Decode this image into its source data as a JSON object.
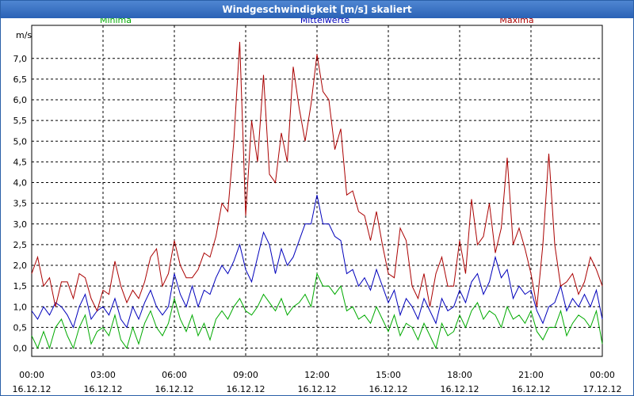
{
  "window": {
    "title": "Windgeschwindigkeit [m/s] skaliert"
  },
  "chart_data": {
    "type": "line",
    "title": "Windgeschwindigkeit [m/s] skaliert",
    "ylabel": "m/s",
    "xlabel": "",
    "ylim": [
      -0.2,
      7.8
    ],
    "yticks": [
      0.0,
      0.5,
      1.0,
      1.5,
      2.0,
      2.5,
      3.0,
      3.5,
      4.0,
      4.5,
      5.0,
      5.5,
      6.0,
      6.5,
      7.0
    ],
    "ytick_labels": [
      "0,0",
      "0,5",
      "1,0",
      "1,5",
      "2,0",
      "2,5",
      "3,0",
      "3,5",
      "4,0",
      "4,5",
      "5,0",
      "5,5",
      "6,0",
      "6,5",
      "7,0"
    ],
    "xticks": [
      0,
      3,
      6,
      9,
      12,
      15,
      18,
      21,
      24
    ],
    "xtick_labels": [
      {
        "time": "00:00",
        "date": "16.12.12"
      },
      {
        "time": "03:00",
        "date": "16.12.12"
      },
      {
        "time": "06:00",
        "date": "16.12.12"
      },
      {
        "time": "09:00",
        "date": "16.12.12"
      },
      {
        "time": "12:00",
        "date": "16.12.12"
      },
      {
        "time": "15:00",
        "date": "16.12.12"
      },
      {
        "time": "18:00",
        "date": "16.12.12"
      },
      {
        "time": "21:00",
        "date": "16.12.12"
      },
      {
        "time": "00:00",
        "date": "17.12.12"
      }
    ],
    "grid": true,
    "series": [
      {
        "name": "Minima",
        "color": "#00aa00",
        "x": [
          0,
          0.25,
          0.5,
          0.75,
          1,
          1.25,
          1.5,
          1.75,
          2,
          2.25,
          2.5,
          2.75,
          3,
          3.25,
          3.5,
          3.75,
          4,
          4.25,
          4.5,
          4.75,
          5,
          5.25,
          5.5,
          5.75,
          6,
          6.25,
          6.5,
          6.75,
          7,
          7.25,
          7.5,
          7.75,
          8,
          8.25,
          8.5,
          8.75,
          9,
          9.25,
          9.5,
          9.75,
          10,
          10.25,
          10.5,
          10.75,
          11,
          11.25,
          11.5,
          11.75,
          12,
          12.25,
          12.5,
          12.75,
          13,
          13.25,
          13.5,
          13.75,
          14,
          14.25,
          14.5,
          14.75,
          15,
          15.25,
          15.5,
          15.75,
          16,
          16.25,
          16.5,
          16.75,
          17,
          17.25,
          17.5,
          17.75,
          18,
          18.25,
          18.5,
          18.75,
          19,
          19.25,
          19.5,
          19.75,
          20,
          20.25,
          20.5,
          20.75,
          21,
          21.25,
          21.5,
          21.75,
          22,
          22.25,
          22.5,
          22.75,
          23,
          23.25,
          23.5,
          23.75,
          24
        ],
        "values": [
          0.3,
          0.0,
          0.4,
          0.0,
          0.5,
          0.7,
          0.3,
          0.0,
          0.5,
          0.8,
          0.1,
          0.4,
          0.5,
          0.3,
          0.8,
          0.2,
          0.0,
          0.5,
          0.1,
          0.6,
          0.9,
          0.5,
          0.3,
          0.6,
          1.2,
          0.7,
          0.4,
          0.8,
          0.3,
          0.6,
          0.2,
          0.7,
          0.9,
          0.7,
          1.0,
          1.2,
          0.9,
          0.8,
          1.0,
          1.3,
          1.1,
          0.9,
          1.2,
          0.8,
          1.0,
          1.1,
          1.3,
          1.0,
          1.8,
          1.5,
          1.5,
          1.3,
          1.5,
          0.9,
          1.0,
          0.7,
          0.8,
          0.6,
          1.0,
          0.7,
          0.4,
          0.8,
          0.3,
          0.6,
          0.5,
          0.2,
          0.6,
          0.3,
          0.0,
          0.6,
          0.3,
          0.4,
          0.8,
          0.5,
          0.9,
          1.1,
          0.7,
          0.9,
          0.8,
          0.5,
          1.0,
          0.7,
          0.8,
          0.6,
          0.9,
          0.4,
          0.2,
          0.5,
          0.5,
          0.9,
          0.3,
          0.6,
          0.8,
          0.7,
          0.5,
          0.9,
          0.1
        ],
        "label_position": "top-left"
      },
      {
        "name": "Mittelwerte",
        "color": "#0000bb",
        "x": [
          0,
          0.25,
          0.5,
          0.75,
          1,
          1.25,
          1.5,
          1.75,
          2,
          2.25,
          2.5,
          2.75,
          3,
          3.25,
          3.5,
          3.75,
          4,
          4.25,
          4.5,
          4.75,
          5,
          5.25,
          5.5,
          5.75,
          6,
          6.25,
          6.5,
          6.75,
          7,
          7.25,
          7.5,
          7.75,
          8,
          8.25,
          8.5,
          8.75,
          9,
          9.25,
          9.5,
          9.75,
          10,
          10.25,
          10.5,
          10.75,
          11,
          11.25,
          11.5,
          11.75,
          12,
          12.25,
          12.5,
          12.75,
          13,
          13.25,
          13.5,
          13.75,
          14,
          14.25,
          14.5,
          14.75,
          15,
          15.25,
          15.5,
          15.75,
          16,
          16.25,
          16.5,
          16.75,
          17,
          17.25,
          17.5,
          17.75,
          18,
          18.25,
          18.5,
          18.75,
          19,
          19.25,
          19.5,
          19.75,
          20,
          20.25,
          20.5,
          20.75,
          21,
          21.25,
          21.5,
          21.75,
          22,
          22.25,
          22.5,
          22.75,
          23,
          23.25,
          23.5,
          23.75,
          24
        ],
        "values": [
          0.9,
          0.7,
          1.0,
          0.8,
          1.1,
          1.0,
          0.8,
          0.5,
          1.0,
          1.3,
          0.7,
          0.9,
          1.0,
          0.8,
          1.2,
          0.7,
          0.5,
          1.0,
          0.7,
          1.1,
          1.4,
          1.0,
          0.8,
          1.0,
          1.8,
          1.3,
          1.0,
          1.5,
          1.0,
          1.4,
          1.3,
          1.7,
          2.0,
          1.8,
          2.1,
          2.5,
          1.9,
          1.6,
          2.2,
          2.8,
          2.5,
          1.8,
          2.4,
          2.0,
          2.2,
          2.6,
          3.0,
          3.0,
          3.7,
          3.0,
          3.0,
          2.7,
          2.6,
          1.8,
          1.9,
          1.5,
          1.7,
          1.4,
          1.9,
          1.5,
          1.1,
          1.4,
          0.8,
          1.2,
          1.0,
          0.7,
          1.2,
          0.9,
          0.6,
          1.2,
          0.9,
          1.0,
          1.4,
          1.1,
          1.6,
          1.8,
          1.3,
          1.6,
          2.2,
          1.7,
          1.9,
          1.2,
          1.5,
          1.3,
          1.4,
          0.9,
          0.6,
          1.0,
          1.1,
          1.5,
          0.9,
          1.2,
          1.0,
          1.3,
          1.0,
          1.4,
          0.7
        ],
        "label_position": "top-center"
      },
      {
        "name": "Maxima",
        "color": "#aa0000",
        "x": [
          0,
          0.25,
          0.5,
          0.75,
          1,
          1.25,
          1.5,
          1.75,
          2,
          2.25,
          2.5,
          2.75,
          3,
          3.25,
          3.5,
          3.75,
          4,
          4.25,
          4.5,
          4.75,
          5,
          5.25,
          5.5,
          5.75,
          6,
          6.25,
          6.5,
          6.75,
          7,
          7.25,
          7.5,
          7.75,
          8,
          8.25,
          8.5,
          8.75,
          9,
          9.25,
          9.5,
          9.75,
          10,
          10.25,
          10.5,
          10.75,
          11,
          11.25,
          11.5,
          11.75,
          12,
          12.25,
          12.5,
          12.75,
          13,
          13.25,
          13.5,
          13.75,
          14,
          14.25,
          14.5,
          14.75,
          15,
          15.25,
          15.5,
          15.75,
          16,
          16.25,
          16.5,
          16.75,
          17,
          17.25,
          17.5,
          17.75,
          18,
          18.25,
          18.5,
          18.75,
          19,
          19.25,
          19.5,
          19.75,
          20,
          20.25,
          20.5,
          20.75,
          21,
          21.25,
          21.5,
          21.75,
          22,
          22.25,
          22.5,
          22.75,
          23,
          23.25,
          23.5,
          23.75,
          24
        ],
        "values": [
          1.8,
          2.2,
          1.5,
          1.7,
          1.0,
          1.6,
          1.6,
          1.2,
          1.8,
          1.7,
          1.2,
          0.9,
          1.4,
          1.3,
          2.1,
          1.5,
          1.1,
          1.4,
          1.2,
          1.6,
          2.2,
          2.4,
          1.5,
          1.8,
          2.6,
          2.0,
          1.7,
          1.7,
          1.9,
          2.3,
          2.2,
          2.7,
          3.5,
          3.3,
          5.0,
          7.4,
          3.2,
          5.5,
          4.5,
          6.6,
          4.2,
          4.0,
          5.2,
          4.5,
          6.8,
          5.8,
          5.0,
          5.9,
          7.1,
          6.2,
          6.0,
          4.8,
          5.3,
          3.7,
          3.8,
          3.3,
          3.2,
          2.6,
          3.3,
          2.5,
          1.8,
          1.7,
          2.9,
          2.6,
          1.5,
          1.2,
          1.8,
          1.0,
          1.8,
          2.2,
          1.5,
          1.5,
          2.6,
          1.8,
          3.6,
          2.5,
          2.7,
          3.5,
          2.3,
          2.9,
          4.6,
          2.5,
          2.9,
          2.4,
          1.8,
          1.0,
          2.5,
          4.7,
          2.5,
          1.5,
          1.6,
          1.8,
          1.3,
          1.6,
          2.2,
          1.9,
          1.5
        ],
        "label_position": "top-right"
      }
    ]
  }
}
